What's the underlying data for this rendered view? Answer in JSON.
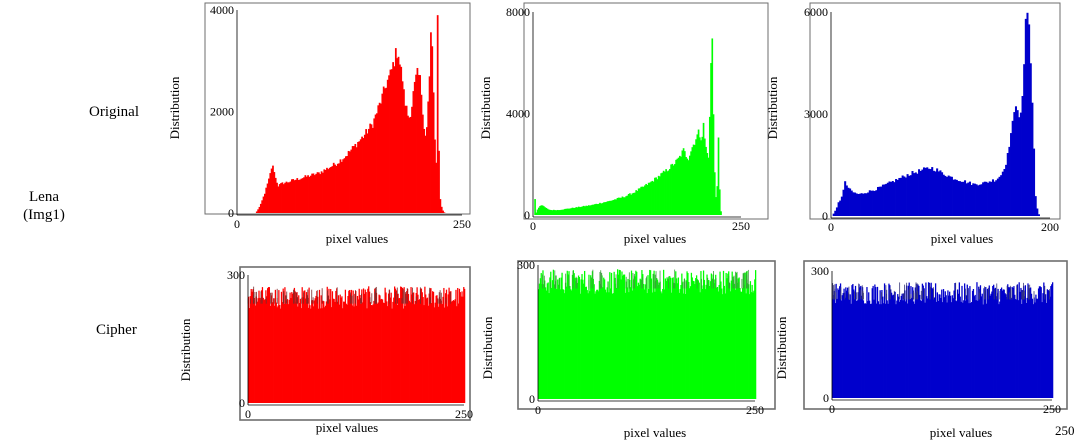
{
  "row_labels": {
    "image_line1": "Lena",
    "image_line2": "(Img1)",
    "original": "Original",
    "cipher": "Cipher"
  },
  "colors": {
    "red": "#ff0000",
    "green": "#00ff00",
    "blue": "#0000cc"
  },
  "chart_data": [
    {
      "id": "orig_red",
      "type": "area",
      "color": "#ff0000",
      "xlabel": "pixel values",
      "ylabel": "Distribution",
      "xlim": [
        0,
        250
      ],
      "ylim": [
        0,
        4000
      ],
      "xticks": [
        "0",
        "250"
      ],
      "yticks": [
        "0",
        "2000",
        "4000"
      ],
      "x": [
        20,
        25,
        30,
        35,
        38,
        40,
        42,
        45,
        48,
        50,
        55,
        60,
        70,
        80,
        90,
        100,
        110,
        120,
        130,
        140,
        150,
        160,
        165,
        170,
        175,
        178,
        180,
        183,
        185,
        188,
        190,
        193,
        195,
        198,
        200,
        203,
        205,
        208,
        210,
        213,
        215,
        218,
        220,
        221,
        222,
        224,
        226,
        228,
        230
      ],
      "values": [
        0,
        150,
        400,
        700,
        950,
        900,
        700,
        550,
        580,
        600,
        620,
        650,
        700,
        750,
        800,
        900,
        1000,
        1150,
        1350,
        1550,
        1800,
        2300,
        2600,
        2800,
        3150,
        3300,
        3000,
        2700,
        2300,
        2050,
        1900,
        2100,
        2400,
        2700,
        2800,
        2650,
        2200,
        1500,
        1700,
        2700,
        3950,
        2000,
        900,
        1200,
        3950,
        400,
        150,
        50,
        0
      ]
    },
    {
      "id": "orig_green",
      "type": "area",
      "color": "#00ff00",
      "xlabel": "pixel values",
      "ylabel": "Distribution",
      "xlim": [
        0,
        250
      ],
      "ylim": [
        0,
        8000
      ],
      "xticks": [
        "0",
        "250"
      ],
      "yticks": [
        "0",
        "4000",
        "8000"
      ],
      "x": [
        0,
        1,
        2,
        4,
        8,
        12,
        16,
        20,
        30,
        40,
        50,
        60,
        70,
        80,
        90,
        100,
        110,
        120,
        130,
        140,
        150,
        160,
        170,
        175,
        180,
        183,
        186,
        190,
        193,
        195,
        198,
        200,
        202,
        204,
        206,
        208,
        210,
        212,
        214,
        216,
        218,
        220,
        222,
        224,
        226,
        228
      ],
      "values": [
        0,
        1300,
        0,
        200,
        400,
        350,
        250,
        200,
        200,
        250,
        300,
        350,
        400,
        480,
        550,
        650,
        750,
        900,
        1100,
        1300,
        1550,
        1800,
        2100,
        2300,
        2600,
        2400,
        2300,
        2700,
        2900,
        3100,
        3300,
        3200,
        3100,
        3600,
        2900,
        2500,
        2400,
        4300,
        8000,
        4000,
        1000,
        500,
        3100,
        300,
        0,
        0
      ]
    },
    {
      "id": "orig_blue",
      "type": "area",
      "color": "#0000cc",
      "xlabel": "pixel values",
      "ylabel": "Distribution",
      "xlim": [
        0,
        200
      ],
      "ylim": [
        0,
        6000
      ],
      "xticks": [
        "0",
        "200"
      ],
      "yticks": [
        "0",
        "3000",
        "6000"
      ],
      "x": [
        0,
        2,
        4,
        6,
        8,
        10,
        12,
        14,
        16,
        18,
        20,
        25,
        30,
        40,
        50,
        60,
        70,
        80,
        90,
        95,
        100,
        110,
        120,
        130,
        140,
        150,
        155,
        160,
        163,
        166,
        168,
        170,
        172,
        174,
        176,
        178,
        180,
        182,
        184,
        186,
        188,
        190
      ],
      "values": [
        0,
        100,
        200,
        400,
        500,
        700,
        1000,
        900,
        800,
        750,
        700,
        650,
        700,
        800,
        950,
        1100,
        1250,
        1350,
        1450,
        1400,
        1300,
        1150,
        1050,
        950,
        1000,
        1100,
        1250,
        1700,
        2400,
        2900,
        3400,
        3300,
        2800,
        3500,
        5000,
        6300,
        6000,
        4200,
        2500,
        600,
        100,
        0
      ]
    },
    {
      "id": "cipher_red",
      "type": "area",
      "color": "#ff0000",
      "xlabel": "pixel values",
      "ylabel": "Distribution",
      "xlim": [
        0,
        250
      ],
      "ylim": [
        0,
        300
      ],
      "xticks": [
        "0",
        "250"
      ],
      "yticks": [
        "0",
        "300"
      ],
      "x": [
        0,
        250
      ],
      "values": [
        240,
        240
      ]
    },
    {
      "id": "cipher_green",
      "type": "area",
      "color": "#00ff00",
      "xlabel": "pixel values",
      "ylabel": "Distribution",
      "xlim": [
        0,
        250
      ],
      "ylim": [
        0,
        300
      ],
      "xticks": [
        "0",
        "250"
      ],
      "yticks": [
        "0",
        "300"
      ],
      "x": [
        0,
        250
      ],
      "values": [
        255,
        255
      ]
    },
    {
      "id": "cipher_blue",
      "type": "area",
      "color": "#0000cc",
      "xlabel": "pixel values",
      "ylabel": "Distribution",
      "xlim": [
        0,
        250
      ],
      "ylim": [
        0,
        300
      ],
      "xticks": [
        "0",
        "250"
      ],
      "yticks": [
        "0",
        "300"
      ],
      "x": [
        0,
        250
      ],
      "values": [
        240,
        240
      ]
    }
  ],
  "stray_label": "250"
}
